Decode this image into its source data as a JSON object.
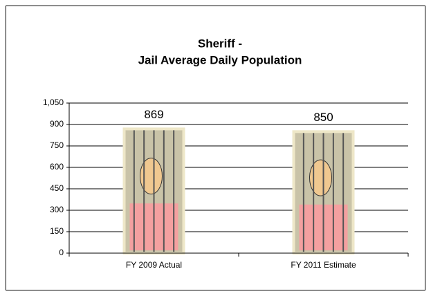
{
  "chart_data": {
    "type": "bar",
    "title": [
      "Sheriff -",
      "Jail Average Daily Population"
    ],
    "categories": [
      "FY 2009 Actual",
      "FY 2011 Estimate"
    ],
    "values": [
      869,
      850
    ],
    "color": "#c9c3a8",
    "ylim": [
      0,
      1050
    ],
    "yticks": [
      0,
      150,
      300,
      450,
      600,
      750,
      900,
      {
        "value": 1050,
        "label": "1,050"
      }
    ],
    "grid": true
  }
}
